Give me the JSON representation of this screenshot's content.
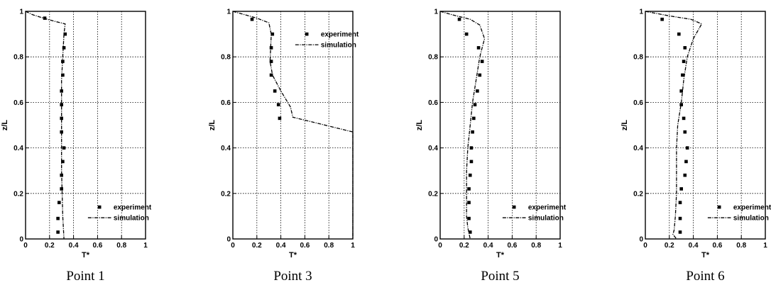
{
  "chart_data": [
    {
      "type": "line",
      "caption": "Point 1",
      "xlabel": "T*",
      "ylabel": "z/L",
      "xlim": [
        0,
        1
      ],
      "ylim": [
        0,
        1
      ],
      "x_ticks": [
        "0",
        "0.2",
        "0.4",
        "0.6",
        "0.8",
        "1"
      ],
      "y_ticks": [
        "0",
        "0.2",
        "0.4",
        "0.6",
        "0.8",
        "1"
      ],
      "grid": true,
      "legend": "bottom-right",
      "series": [
        {
          "name": "experiment",
          "style": "markers",
          "points": [
            [
              0.16,
              0.97
            ],
            [
              0.33,
              0.9
            ],
            [
              0.32,
              0.84
            ],
            [
              0.31,
              0.78
            ],
            [
              0.31,
              0.72
            ],
            [
              0.3,
              0.65
            ],
            [
              0.3,
              0.59
            ],
            [
              0.3,
              0.53
            ],
            [
              0.3,
              0.47
            ],
            [
              0.32,
              0.4
            ],
            [
              0.31,
              0.34
            ],
            [
              0.3,
              0.28
            ],
            [
              0.3,
              0.22
            ],
            [
              0.28,
              0.16
            ],
            [
              0.27,
              0.09
            ],
            [
              0.27,
              0.03
            ]
          ]
        },
        {
          "name": "simulation",
          "style": "dash-dot",
          "points": [
            [
              0,
              1
            ],
            [
              0.06,
              0.985
            ],
            [
              0.15,
              0.97
            ],
            [
              0.25,
              0.955
            ],
            [
              0.33,
              0.945
            ],
            [
              0.32,
              0.9
            ],
            [
              0.31,
              0.8
            ],
            [
              0.3,
              0.7
            ],
            [
              0.3,
              0.5
            ],
            [
              0.3,
              0.3
            ],
            [
              0.31,
              0.1
            ],
            [
              0.32,
              0
            ]
          ]
        }
      ]
    },
    {
      "type": "line",
      "caption": "Point 3",
      "xlabel": "T*",
      "ylabel": "z/L",
      "xlim": [
        0,
        1
      ],
      "ylim": [
        0,
        1
      ],
      "x_ticks": [
        "0",
        "0.2",
        "0.4",
        "0.6",
        "0.8",
        "1"
      ],
      "y_ticks": [
        "0",
        "0.2",
        "0.4",
        "0.6",
        "0.8",
        "1"
      ],
      "grid": true,
      "legend": "top-right",
      "series": [
        {
          "name": "experiment",
          "style": "markers",
          "points": [
            [
              0.16,
              0.965
            ],
            [
              0.33,
              0.9
            ],
            [
              0.32,
              0.84
            ],
            [
              0.32,
              0.78
            ],
            [
              0.32,
              0.72
            ],
            [
              0.35,
              0.65
            ],
            [
              0.38,
              0.59
            ],
            [
              0.39,
              0.53
            ]
          ]
        },
        {
          "name": "simulation",
          "style": "dash-dot",
          "points": [
            [
              0,
              1
            ],
            [
              0.1,
              0.985
            ],
            [
              0.2,
              0.97
            ],
            [
              0.3,
              0.95
            ],
            [
              0.32,
              0.9
            ],
            [
              0.31,
              0.78
            ],
            [
              0.33,
              0.72
            ],
            [
              0.4,
              0.65
            ],
            [
              0.48,
              0.58
            ],
            [
              0.5,
              0.535
            ],
            [
              1,
              0.47
            ],
            [
              1,
              0
            ]
          ]
        }
      ]
    },
    {
      "type": "line",
      "caption": "Point 5",
      "xlabel": "T*",
      "ylabel": "z/L",
      "xlim": [
        0,
        1
      ],
      "ylim": [
        0,
        1
      ],
      "x_ticks": [
        "0",
        "0.2",
        "0.4",
        "0.6",
        "0.8",
        "1"
      ],
      "y_ticks": [
        "0",
        "0.2",
        "0.4",
        "0.6",
        "0.8",
        "1"
      ],
      "grid": true,
      "legend": "bottom-right",
      "series": [
        {
          "name": "experiment",
          "style": "markers",
          "points": [
            [
              0.16,
              0.965
            ],
            [
              0.22,
              0.9
            ],
            [
              0.32,
              0.84
            ],
            [
              0.35,
              0.78
            ],
            [
              0.33,
              0.72
            ],
            [
              0.31,
              0.65
            ],
            [
              0.29,
              0.59
            ],
            [
              0.28,
              0.53
            ],
            [
              0.27,
              0.47
            ],
            [
              0.26,
              0.4
            ],
            [
              0.26,
              0.34
            ],
            [
              0.25,
              0.28
            ],
            [
              0.24,
              0.22
            ],
            [
              0.24,
              0.16
            ],
            [
              0.24,
              0.09
            ],
            [
              0.25,
              0.03
            ]
          ]
        },
        {
          "name": "simulation",
          "style": "dash-dot",
          "points": [
            [
              0,
              1
            ],
            [
              0.1,
              0.985
            ],
            [
              0.25,
              0.965
            ],
            [
              0.33,
              0.94
            ],
            [
              0.37,
              0.88
            ],
            [
              0.33,
              0.8
            ],
            [
              0.3,
              0.7
            ],
            [
              0.27,
              0.6
            ],
            [
              0.25,
              0.5
            ],
            [
              0.23,
              0.4
            ],
            [
              0.22,
              0.3
            ],
            [
              0.22,
              0.2
            ],
            [
              0.22,
              0.1
            ],
            [
              0.23,
              0.05
            ],
            [
              0.25,
              0
            ]
          ]
        }
      ]
    },
    {
      "type": "line",
      "caption": "Point 6",
      "xlabel": "T*",
      "ylabel": "z/L",
      "xlim": [
        0,
        1
      ],
      "ylim": [
        0,
        1
      ],
      "x_ticks": [
        "0",
        "0.2",
        "0.4",
        "0.6",
        "0.8",
        "1"
      ],
      "y_ticks": [
        "0",
        "0.2",
        "0.4",
        "0.6",
        "0.8",
        "1"
      ],
      "grid": true,
      "legend": "bottom-right",
      "series": [
        {
          "name": "experiment",
          "style": "markers",
          "points": [
            [
              0.14,
              0.965
            ],
            [
              0.28,
              0.9
            ],
            [
              0.33,
              0.84
            ],
            [
              0.32,
              0.78
            ],
            [
              0.31,
              0.72
            ],
            [
              0.3,
              0.65
            ],
            [
              0.3,
              0.59
            ],
            [
              0.32,
              0.53
            ],
            [
              0.33,
              0.47
            ],
            [
              0.35,
              0.4
            ],
            [
              0.34,
              0.34
            ],
            [
              0.33,
              0.28
            ],
            [
              0.3,
              0.22
            ],
            [
              0.29,
              0.16
            ],
            [
              0.29,
              0.09
            ],
            [
              0.29,
              0.03
            ]
          ]
        },
        {
          "name": "simulation",
          "style": "dash-dot",
          "points": [
            [
              0,
              1
            ],
            [
              0.2,
              0.98
            ],
            [
              0.38,
              0.965
            ],
            [
              0.47,
              0.945
            ],
            [
              0.4,
              0.88
            ],
            [
              0.35,
              0.8
            ],
            [
              0.32,
              0.7
            ],
            [
              0.3,
              0.6
            ],
            [
              0.27,
              0.5
            ],
            [
              0.26,
              0.4
            ],
            [
              0.26,
              0.3
            ],
            [
              0.26,
              0.2
            ],
            [
              0.25,
              0.1
            ],
            [
              0.24,
              0.04
            ],
            [
              0.23,
              0.02
            ],
            [
              0.26,
              0
            ]
          ]
        }
      ]
    }
  ]
}
